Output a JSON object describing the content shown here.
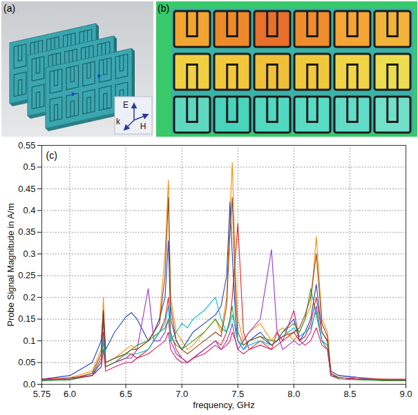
{
  "chart_data": {
    "type": "line",
    "x_label": "frequency, GHz",
    "y_label": "Probe Signal Magnitude in A/m",
    "annotations": [
      "(c)"
    ],
    "x": [
      5.75,
      6.0,
      6.2,
      6.28,
      6.3,
      6.32,
      6.4,
      6.5,
      6.55,
      6.6,
      6.7,
      6.75,
      6.8,
      6.85,
      6.88,
      6.9,
      6.95,
      7.0,
      7.05,
      7.1,
      7.2,
      7.3,
      7.35,
      7.4,
      7.43,
      7.45,
      7.48,
      7.5,
      7.55,
      7.6,
      7.7,
      7.8,
      7.85,
      7.9,
      8.0,
      8.05,
      8.1,
      8.15,
      8.2,
      8.25,
      8.3,
      8.33,
      8.4,
      8.6,
      8.8,
      9.0
    ],
    "series": [
      {
        "color": "#ff8c00",
        "values": [
          0.01,
          0.015,
          0.03,
          0.08,
          0.2,
          0.05,
          0.06,
          0.08,
          0.09,
          0.08,
          0.1,
          0.12,
          0.15,
          0.3,
          0.47,
          0.2,
          0.12,
          0.1,
          0.08,
          0.09,
          0.12,
          0.15,
          0.12,
          0.2,
          0.4,
          0.51,
          0.25,
          0.15,
          0.1,
          0.12,
          0.14,
          0.1,
          0.12,
          0.13,
          0.1,
          0.12,
          0.15,
          0.18,
          0.34,
          0.15,
          0.12,
          0.03,
          0.02,
          0.015,
          0.012,
          0.01
        ]
      },
      {
        "color": "#1f3fbf",
        "values": [
          0.012,
          0.02,
          0.05,
          0.1,
          0.17,
          0.08,
          0.12,
          0.155,
          0.165,
          0.15,
          0.1,
          0.12,
          0.15,
          0.2,
          0.33,
          0.15,
          0.1,
          0.08,
          0.1,
          0.12,
          0.14,
          0.16,
          0.18,
          0.25,
          0.42,
          0.3,
          0.15,
          0.1,
          0.08,
          0.1,
          0.12,
          0.09,
          0.1,
          0.12,
          0.15,
          0.1,
          0.12,
          0.15,
          0.23,
          0.12,
          0.1,
          0.03,
          0.02,
          0.015,
          0.01,
          0.01
        ]
      },
      {
        "color": "#e0201a",
        "values": [
          0.01,
          0.012,
          0.02,
          0.06,
          0.15,
          0.04,
          0.05,
          0.06,
          0.07,
          0.06,
          0.08,
          0.1,
          0.12,
          0.15,
          0.2,
          0.12,
          0.08,
          0.06,
          0.05,
          0.06,
          0.08,
          0.1,
          0.09,
          0.12,
          0.15,
          0.2,
          0.3,
          0.37,
          0.12,
          0.08,
          0.1,
          0.08,
          0.09,
          0.1,
          0.12,
          0.1,
          0.11,
          0.14,
          0.2,
          0.12,
          0.1,
          0.025,
          0.015,
          0.012,
          0.01,
          0.01
        ]
      },
      {
        "color": "#9932cc",
        "values": [
          0.01,
          0.012,
          0.02,
          0.05,
          0.12,
          0.04,
          0.05,
          0.06,
          0.06,
          0.08,
          0.22,
          0.1,
          0.1,
          0.12,
          0.15,
          0.1,
          0.07,
          0.06,
          0.05,
          0.06,
          0.08,
          0.1,
          0.08,
          0.1,
          0.12,
          0.14,
          0.1,
          0.08,
          0.1,
          0.12,
          0.15,
          0.31,
          0.12,
          0.08,
          0.1,
          0.09,
          0.1,
          0.12,
          0.18,
          0.1,
          0.09,
          0.02,
          0.015,
          0.012,
          0.01,
          0.01
        ]
      },
      {
        "color": "#2ca02c",
        "values": [
          0.008,
          0.01,
          0.02,
          0.04,
          0.1,
          0.04,
          0.05,
          0.07,
          0.08,
          0.09,
          0.1,
          0.11,
          0.12,
          0.13,
          0.15,
          0.11,
          0.09,
          0.08,
          0.09,
          0.1,
          0.12,
          0.15,
          0.13,
          0.12,
          0.15,
          0.18,
          0.12,
          0.1,
          0.09,
          0.1,
          0.11,
          0.1,
          0.1,
          0.12,
          0.14,
          0.12,
          0.15,
          0.22,
          0.16,
          0.1,
          0.08,
          0.02,
          0.012,
          0.01,
          0.008,
          0.008
        ]
      },
      {
        "color": "#00bcd4",
        "values": [
          0.01,
          0.012,
          0.025,
          0.05,
          0.11,
          0.05,
          0.06,
          0.07,
          0.07,
          0.07,
          0.08,
          0.1,
          0.12,
          0.14,
          0.18,
          0.1,
          0.12,
          0.14,
          0.13,
          0.15,
          0.17,
          0.2,
          0.15,
          0.12,
          0.14,
          0.16,
          0.13,
          0.1,
          0.08,
          0.09,
          0.1,
          0.09,
          0.1,
          0.11,
          0.13,
          0.11,
          0.12,
          0.13,
          0.17,
          0.1,
          0.09,
          0.025,
          0.015,
          0.012,
          0.01,
          0.01
        ]
      },
      {
        "color": "#8b4513",
        "values": [
          0.01,
          0.012,
          0.025,
          0.07,
          0.17,
          0.05,
          0.06,
          0.07,
          0.08,
          0.08,
          0.1,
          0.12,
          0.14,
          0.25,
          0.43,
          0.18,
          0.1,
          0.08,
          0.07,
          0.08,
          0.1,
          0.12,
          0.11,
          0.18,
          0.35,
          0.43,
          0.2,
          0.12,
          0.09,
          0.1,
          0.11,
          0.09,
          0.1,
          0.11,
          0.12,
          0.13,
          0.16,
          0.2,
          0.3,
          0.14,
          0.11,
          0.025,
          0.015,
          0.012,
          0.01,
          0.01
        ]
      },
      {
        "color": "#d81b60",
        "values": [
          0.012,
          0.015,
          0.02,
          0.04,
          0.08,
          0.03,
          0.04,
          0.05,
          0.05,
          0.06,
          0.07,
          0.08,
          0.09,
          0.1,
          0.12,
          0.08,
          0.06,
          0.05,
          0.05,
          0.06,
          0.07,
          0.09,
          0.08,
          0.09,
          0.1,
          0.12,
          0.1,
          0.08,
          0.07,
          0.08,
          0.09,
          0.08,
          0.12,
          0.1,
          0.17,
          0.1,
          0.09,
          0.1,
          0.13,
          0.09,
          0.08,
          0.02,
          0.015,
          0.012,
          0.012,
          0.012
        ]
      }
    ],
    "xlim": [
      5.75,
      9.0
    ],
    "xticks": [
      5.75,
      {
        "value": 6,
        "label": "6.0"
      },
      6.5,
      {
        "value": 7,
        "label": "7.0"
      },
      7.5,
      {
        "value": 8,
        "label": "8.0"
      },
      8.5,
      {
        "value": 9,
        "label": "9.0"
      }
    ],
    "ylim": [
      0,
      0.55
    ],
    "yticks": [
      {
        "value": 0,
        "label": "0.0"
      },
      0.05,
      0.1,
      0.15,
      0.2,
      0.25,
      0.3,
      0.35,
      0.4,
      0.45,
      0.5,
      0.55
    ],
    "grid": true
  },
  "panels": [
    {
      "label": "(a)",
      "axis_labels": [
        "E",
        "H",
        "k"
      ]
    },
    {
      "label": "(b)"
    }
  ]
}
